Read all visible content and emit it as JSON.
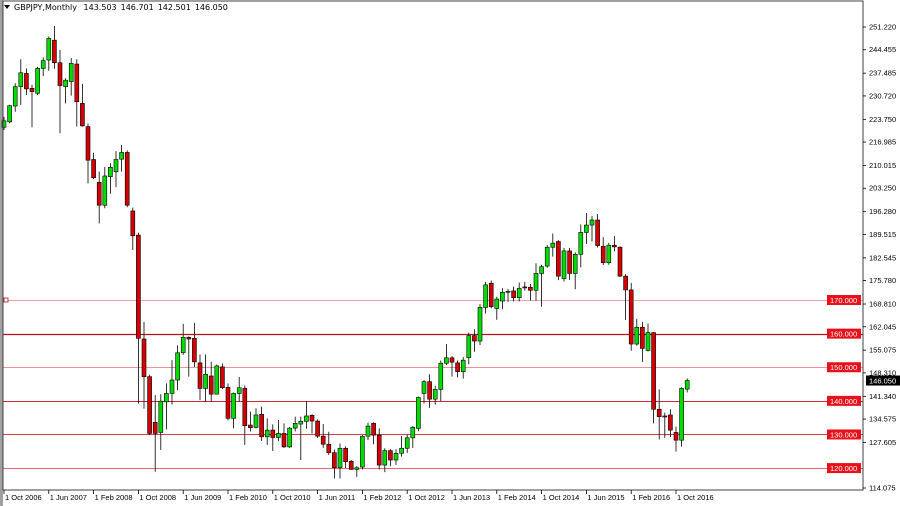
{
  "header": {
    "symbol": "GBPJPY,Monthly",
    "open": "143.503",
    "high": "146.701",
    "low": "142.501",
    "close": "146.050"
  },
  "colors": {
    "bull": "#00dc00",
    "bear": "#d40000",
    "wick": "#000000",
    "level_label_bg": "#e8101a",
    "price_label_bg": "#000000"
  },
  "chart_data": {
    "type": "candlestick",
    "title": "GBPJPY,Monthly",
    "grid": false,
    "ylim": [
      114.075,
      251.22
    ],
    "y_ticks": [
      "251.220",
      "244.455",
      "237.485",
      "230.720",
      "223.750",
      "216.985",
      "210.015",
      "203.250",
      "196.280",
      "189.515",
      "182.545",
      "175.780",
      "168.810",
      "162.045",
      "155.075",
      "148.310",
      "141.340",
      "134.575",
      "127.605",
      "114.075"
    ],
    "x_ticks": [
      "1 Oct 2006",
      "1 Jun 2007",
      "1 Feb 2008",
      "1 Oct 2008",
      "1 Jun 2009",
      "1 Feb 2010",
      "1 Oct 2010",
      "1 Jun 2011",
      "1 Feb 2012",
      "1 Oct 2012",
      "1 Jun 2013",
      "1 Feb 2014",
      "1 Oct 2014",
      "1 Jun 2015",
      "1 Feb 2016",
      "1 Oct 2016"
    ],
    "current_price": "146.050",
    "levels": [
      {
        "value": 170,
        "label": "170.000",
        "color": "#f2a0a8"
      },
      {
        "value": 160,
        "label": "160.000",
        "color": "#b81020"
      },
      {
        "value": 150,
        "label": "150.000",
        "color": "#f0909a"
      },
      {
        "value": 140,
        "label": "140.000",
        "color": "#d02838"
      },
      {
        "value": 130,
        "label": "130.000",
        "color": "#d84050"
      },
      {
        "value": 120,
        "label": "120.000",
        "color": "#e86878"
      }
    ],
    "columns": [
      "date",
      "open",
      "high",
      "low",
      "close"
    ],
    "candles": [
      [
        "2006-10",
        221.4,
        224.5,
        220.6,
        223.3
      ],
      [
        "2006-11",
        223.0,
        228.1,
        222.6,
        227.8
      ],
      [
        "2006-12",
        227.7,
        234.5,
        226.0,
        233.5
      ],
      [
        "2007-01",
        233.5,
        241.6,
        228.0,
        237.6
      ],
      [
        "2007-02",
        237.4,
        238.9,
        231.0,
        232.8
      ],
      [
        "2007-03",
        233.0,
        234.0,
        221.4,
        232.0
      ],
      [
        "2007-04",
        231.5,
        239.4,
        231.0,
        238.9
      ],
      [
        "2007-05",
        238.9,
        242.2,
        236.6,
        241.2
      ],
      [
        "2007-06",
        241.4,
        248.4,
        238.2,
        247.8
      ],
      [
        "2007-07",
        247.3,
        251.5,
        238.8,
        240.6
      ],
      [
        "2007-08",
        240.6,
        244.4,
        219.6,
        233.8
      ],
      [
        "2007-09",
        233.5,
        236.0,
        228.5,
        235.4
      ],
      [
        "2007-10",
        235.0,
        242.0,
        230.8,
        240.4
      ],
      [
        "2007-11",
        240.2,
        241.6,
        221.6,
        229.0
      ],
      [
        "2007-12",
        228.5,
        234.3,
        221.6,
        221.8
      ],
      [
        "2008-01",
        221.6,
        222.5,
        204.7,
        211.6
      ],
      [
        "2008-02",
        211.8,
        213.8,
        206.0,
        206.4
      ],
      [
        "2008-03",
        205.0,
        208.2,
        192.8,
        198.2
      ],
      [
        "2008-04",
        198.2,
        209.6,
        197.3,
        206.9
      ],
      [
        "2008-05",
        206.7,
        210.7,
        201.6,
        209.5
      ],
      [
        "2008-06",
        208.2,
        214.3,
        203.6,
        211.8
      ],
      [
        "2008-07",
        211.9,
        216.1,
        208.2,
        213.9
      ],
      [
        "2008-08",
        213.9,
        214.5,
        197.6,
        198.2
      ],
      [
        "2008-09",
        196.5,
        197.5,
        184.9,
        189.1
      ],
      [
        "2008-10",
        189.3,
        190.0,
        139.2,
        158.6
      ],
      [
        "2008-11",
        158.4,
        163.5,
        137.7,
        147.2
      ],
      [
        "2008-12",
        147.2,
        147.8,
        129.8,
        130.3
      ],
      [
        "2009-01",
        133.6,
        141.7,
        118.9,
        130.3
      ],
      [
        "2009-02",
        130.6,
        142.0,
        125.4,
        139.9
      ],
      [
        "2009-03",
        139.7,
        145.2,
        131.5,
        142.2
      ],
      [
        "2009-04",
        142.2,
        152.1,
        138.9,
        146.2
      ],
      [
        "2009-05",
        146.2,
        156.5,
        143.2,
        154.3
      ],
      [
        "2009-06",
        154.3,
        162.9,
        153.7,
        158.9
      ],
      [
        "2009-07",
        158.9,
        159.2,
        147.2,
        158.4
      ],
      [
        "2009-08",
        158.6,
        163.2,
        150.1,
        151.6
      ],
      [
        "2009-09",
        151.3,
        153.8,
        140.2,
        143.7
      ],
      [
        "2009-10",
        143.7,
        153.8,
        139.7,
        147.9
      ],
      [
        "2009-11",
        147.4,
        151.6,
        139.7,
        142.0
      ],
      [
        "2009-12",
        142.0,
        150.8,
        142.0,
        150.4
      ],
      [
        "2010-01",
        150.1,
        151.1,
        143.5,
        143.9
      ],
      [
        "2010-02",
        144.0,
        145.2,
        134.2,
        134.8
      ],
      [
        "2010-03",
        134.8,
        142.5,
        131.8,
        142.2
      ],
      [
        "2010-04",
        142.2,
        147.1,
        139.7,
        143.9
      ],
      [
        "2010-05",
        143.7,
        144.6,
        126.9,
        132.6
      ],
      [
        "2010-06",
        132.8,
        136.8,
        130.9,
        132.0
      ],
      [
        "2010-07",
        132.1,
        137.8,
        131.8,
        135.8
      ],
      [
        "2010-08",
        136.0,
        138.3,
        128.1,
        129.3
      ],
      [
        "2010-09",
        129.3,
        134.8,
        126.9,
        131.3
      ],
      [
        "2010-10",
        131.3,
        133.0,
        125.1,
        129.1
      ],
      [
        "2010-11",
        129.1,
        134.3,
        128.0,
        130.3
      ],
      [
        "2010-12",
        130.3,
        133.3,
        126.0,
        126.3
      ],
      [
        "2011-01",
        126.3,
        132.2,
        126.0,
        131.9
      ],
      [
        "2011-02",
        131.9,
        135.3,
        130.9,
        133.3
      ],
      [
        "2011-03",
        133.1,
        135.3,
        122.4,
        133.9
      ],
      [
        "2011-04",
        133.9,
        140.0,
        131.7,
        135.5
      ],
      [
        "2011-05",
        135.7,
        136.0,
        130.3,
        134.0
      ],
      [
        "2011-06",
        134.0,
        134.5,
        129.0,
        129.5
      ],
      [
        "2011-07",
        129.5,
        133.1,
        126.0,
        127.1
      ],
      [
        "2011-08",
        127.1,
        130.8,
        123.9,
        124.6
      ],
      [
        "2011-09",
        124.6,
        125.5,
        116.9,
        120.1
      ],
      [
        "2011-10",
        120.1,
        127.3,
        116.9,
        125.9
      ],
      [
        "2011-11",
        125.9,
        126.5,
        120.0,
        121.9
      ],
      [
        "2011-12",
        122.0,
        122.4,
        119.5,
        119.6
      ],
      [
        "2012-01",
        119.6,
        120.6,
        117.4,
        120.1
      ],
      [
        "2012-02",
        120.3,
        129.8,
        119.6,
        129.5
      ],
      [
        "2012-03",
        129.5,
        133.5,
        128.3,
        132.5
      ],
      [
        "2012-04",
        133.3,
        133.6,
        127.1,
        129.8
      ],
      [
        "2012-05",
        129.8,
        131.8,
        119.6,
        120.9
      ],
      [
        "2012-06",
        120.9,
        125.9,
        118.8,
        125.2
      ],
      [
        "2012-07",
        125.2,
        125.6,
        120.6,
        122.4
      ],
      [
        "2012-08",
        122.4,
        125.6,
        120.9,
        124.4
      ],
      [
        "2012-09",
        124.4,
        129.5,
        123.4,
        125.9
      ],
      [
        "2012-10",
        125.9,
        130.0,
        124.5,
        129.0
      ],
      [
        "2012-11",
        129.0,
        132.5,
        126.0,
        132.1
      ],
      [
        "2012-12",
        131.8,
        141.3,
        131.0,
        141.0
      ],
      [
        "2013-01",
        142.2,
        146.2,
        139.2,
        145.7
      ],
      [
        "2013-02",
        145.7,
        147.9,
        137.9,
        140.5
      ],
      [
        "2013-03",
        140.5,
        144.5,
        138.9,
        143.4
      ],
      [
        "2013-04",
        143.4,
        152.0,
        139.9,
        151.2
      ],
      [
        "2013-05",
        151.2,
        156.9,
        150.7,
        152.8
      ],
      [
        "2013-06",
        152.8,
        153.3,
        147.2,
        151.5
      ],
      [
        "2013-07",
        151.3,
        152.0,
        147.0,
        148.7
      ],
      [
        "2013-08",
        148.7,
        153.0,
        146.6,
        152.1
      ],
      [
        "2013-09",
        152.9,
        160.3,
        150.9,
        159.4
      ],
      [
        "2013-10",
        159.4,
        161.3,
        154.6,
        157.8
      ],
      [
        "2013-11",
        157.8,
        168.8,
        156.6,
        167.8
      ],
      [
        "2013-12",
        167.8,
        175.4,
        166.0,
        174.5
      ],
      [
        "2014-01",
        175.0,
        175.8,
        167.5,
        168.0
      ],
      [
        "2014-02",
        167.5,
        171.0,
        164.1,
        170.3
      ],
      [
        "2014-03",
        169.7,
        173.5,
        167.3,
        172.3
      ],
      [
        "2014-04",
        172.3,
        173.3,
        169.5,
        172.6
      ],
      [
        "2014-05",
        172.7,
        174.0,
        169.6,
        170.7
      ],
      [
        "2014-06",
        170.7,
        175.2,
        169.6,
        173.5
      ],
      [
        "2014-07",
        173.9,
        175.4,
        172.8,
        173.7
      ],
      [
        "2014-08",
        173.8,
        174.8,
        169.8,
        172.9
      ],
      [
        "2014-09",
        172.9,
        180.9,
        169.8,
        177.9
      ],
      [
        "2014-10",
        177.9,
        180.5,
        168.0,
        179.9
      ],
      [
        "2014-11",
        180.1,
        186.4,
        179.6,
        185.7
      ],
      [
        "2014-12",
        185.7,
        189.8,
        182.9,
        186.9
      ],
      [
        "2015-01",
        187.4,
        187.8,
        175.9,
        177.1
      ],
      [
        "2015-02",
        176.4,
        185.5,
        175.5,
        184.6
      ],
      [
        "2015-03",
        184.6,
        185.5,
        176.0,
        177.9
      ],
      [
        "2015-04",
        177.9,
        184.2,
        173.2,
        183.6
      ],
      [
        "2015-05",
        183.6,
        192.5,
        179.7,
        190.1
      ],
      [
        "2015-06",
        190.1,
        195.9,
        186.7,
        192.3
      ],
      [
        "2015-07",
        192.3,
        195.0,
        187.4,
        193.8
      ],
      [
        "2015-08",
        193.8,
        195.6,
        185.6,
        186.2
      ],
      [
        "2015-09",
        186.0,
        188.7,
        180.4,
        181.1
      ],
      [
        "2015-10",
        181.1,
        187.0,
        180.5,
        186.3
      ],
      [
        "2015-11",
        186.3,
        189.0,
        184.5,
        185.8
      ],
      [
        "2015-12",
        185.7,
        186.0,
        176.8,
        177.1
      ],
      [
        "2016-01",
        177.1,
        177.7,
        164.1,
        173.0
      ],
      [
        "2016-02",
        173.0,
        175.1,
        154.9,
        156.9
      ],
      [
        "2016-03",
        156.9,
        164.4,
        156.4,
        161.9
      ],
      [
        "2016-04",
        161.9,
        163.5,
        151.6,
        155.6
      ],
      [
        "2016-05",
        155.0,
        163.0,
        154.7,
        160.3
      ],
      [
        "2016-06",
        160.3,
        160.5,
        133.3,
        137.5
      ],
      [
        "2016-07",
        137.5,
        143.4,
        128.5,
        135.3
      ],
      [
        "2016-08",
        135.5,
        136.5,
        129.0,
        135.3
      ],
      [
        "2016-09",
        135.8,
        137.5,
        129.2,
        131.3
      ],
      [
        "2016-10",
        130.6,
        132.3,
        124.9,
        128.3
      ],
      [
        "2016-11",
        128.3,
        144.0,
        126.4,
        143.7
      ],
      [
        "2016-12",
        143.503,
        146.701,
        142.501,
        146.05
      ]
    ]
  }
}
